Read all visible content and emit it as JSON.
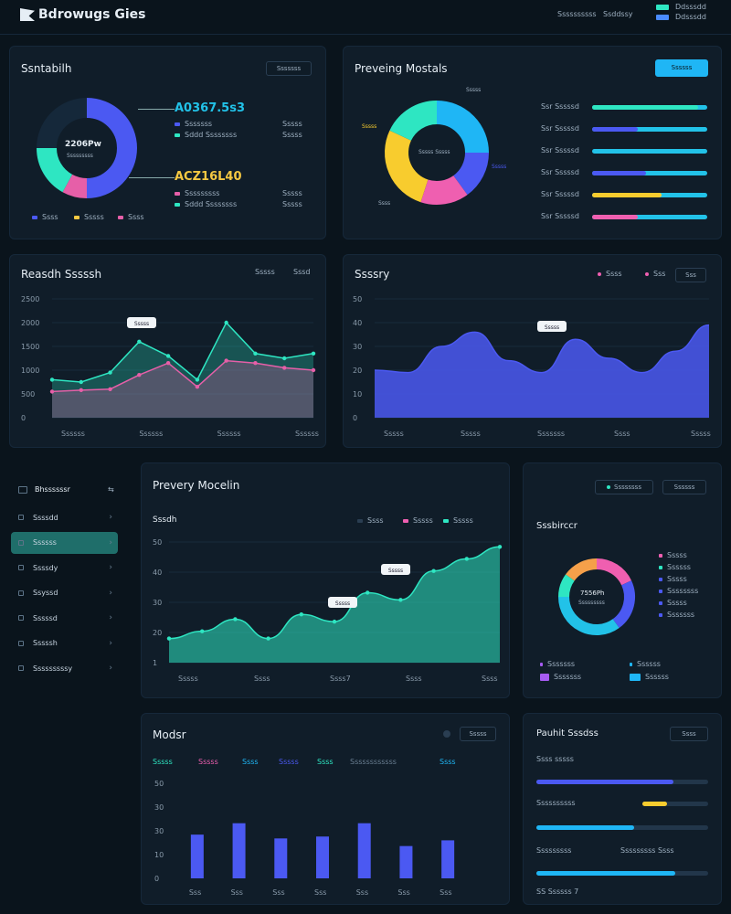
{
  "header": {
    "logo_text": "Bdrowugs Gies",
    "nav": [
      "Ssssssssss",
      "Ssddssy"
    ],
    "legend": [
      {
        "label": "Ddsssdd",
        "color": "#2ee6c2"
      },
      {
        "label": "Ddsssdd",
        "color": "#4a8bff"
      }
    ]
  },
  "donut1": {
    "title": "Ssntabilh",
    "button": "Sssssss",
    "center_value": "2206Pw",
    "center_sub": "Sssssssss",
    "stat1": "A0367.5s3",
    "stat2": "ACZ16L40",
    "stat1_rows": [
      {
        "label": "Sssssss",
        "value": "Sssss",
        "color": "#4b59f2"
      },
      {
        "label": "Sddd Ssssssss",
        "value": "Sssss",
        "color": "#2ee6c2"
      }
    ],
    "stat2_rows": [
      {
        "label": "Sssssssss",
        "value": "Sssss",
        "color": "#e65fa8"
      },
      {
        "label": "Sddd Ssssssss",
        "value": "Sssss",
        "color": "#2ee6c2"
      }
    ],
    "footer": [
      {
        "label": "Ssss",
        "color": "#4b59f2"
      },
      {
        "label": "Sssss",
        "color": "#f5c842"
      },
      {
        "label": "Ssss",
        "color": "#e65fa8"
      }
    ],
    "segments": [
      {
        "value": 50,
        "color": "#4b59f2"
      },
      {
        "value": 8,
        "color": "#e65fa8"
      },
      {
        "value": 17,
        "color": "#2ee6c2"
      },
      {
        "value": 25,
        "color": "#15283a"
      }
    ]
  },
  "donut2": {
    "title": "Preveing Mostals",
    "button": "Ssssss",
    "center_label": "Sssss Sssss",
    "callouts": [
      "Sssss",
      "Sssss",
      "Ssss",
      "Sssss"
    ],
    "segments": [
      {
        "value": 25,
        "color": "#1fb6f5"
      },
      {
        "value": 15,
        "color": "#4b59f2"
      },
      {
        "value": 15,
        "color": "#ef5fb0"
      },
      {
        "value": 27,
        "color": "#f8cc2e"
      },
      {
        "value": 18,
        "color": "#2ee6c2"
      }
    ],
    "bars": [
      {
        "label": "Ssr Sssssd",
        "fill": 0.92,
        "color": "#2ee6c2"
      },
      {
        "label": "Ssr Sssssd",
        "fill": 0.4,
        "color": "#4b59f2"
      },
      {
        "label": "Ssr Sssssd",
        "fill": 0.0,
        "color": "#1fb6f5"
      },
      {
        "label": "Ssr Sssssd",
        "fill": 0.47,
        "color": "#4b59f2"
      },
      {
        "label": "Ssr Sssssd",
        "fill": 0.6,
        "color": "#f8cc2e"
      },
      {
        "label": "Ssr Sssssd",
        "fill": 0.4,
        "color": "#ef5fb0"
      }
    ]
  },
  "chart_data": [
    {
      "type": "area",
      "title": "Reasdh Sssssh",
      "controls": [
        "Sssss",
        "Sssd"
      ],
      "callout": "Sssss",
      "ylim": [
        0,
        2500
      ],
      "yticks": [
        "2500",
        "2000",
        "1500",
        "1000",
        "500",
        "0"
      ],
      "xticks": [
        "Ssssss",
        "Ssssss",
        "Ssssss",
        "Ssssss"
      ],
      "series": [
        {
          "color": "#2ee6c2",
          "values": [
            800,
            750,
            950,
            1600,
            1300,
            800,
            2000,
            1350,
            1250,
            1350
          ]
        },
        {
          "color": "#e65fa8",
          "values": [
            550,
            580,
            600,
            900,
            1150,
            650,
            1200,
            1150,
            1050,
            1000
          ]
        }
      ]
    },
    {
      "type": "area",
      "title": "Ssssry",
      "legend": [
        "Ssss",
        "Sss",
        "Sss"
      ],
      "callout": "Sssss",
      "ylim": [
        0,
        50
      ],
      "yticks": [
        "50",
        "40",
        "30",
        "20",
        "10",
        "0"
      ],
      "xticks": [
        "Sssss",
        "Sssss",
        "Sssssss",
        "Ssss",
        "Sssss"
      ],
      "series": [
        {
          "color": "#4b59f2",
          "values": [
            20,
            19,
            30,
            36,
            24,
            19,
            33,
            25,
            19,
            28,
            39
          ]
        }
      ]
    },
    {
      "type": "area",
      "title": "Sssdh",
      "legend": [
        "Ssss",
        "Sssss",
        "Sssss"
      ],
      "callouts": [
        "Sssss",
        "Sssss"
      ],
      "ylim": [
        0,
        50
      ],
      "yticks": [
        "50",
        "40",
        "30",
        "20",
        "1"
      ],
      "xticks": [
        "Sssss",
        "Ssss",
        "Ssss7",
        "Ssss",
        "Ssss"
      ],
      "series": [
        {
          "color": "#2ee6c2",
          "values": [
            10,
            13,
            18,
            10,
            20,
            17,
            29,
            26,
            38,
            43,
            48
          ]
        }
      ]
    },
    {
      "type": "bar",
      "title": "Modsr",
      "button": "Sssss",
      "legend": [
        "Sssss",
        "Sssss",
        "Ssss",
        "Sssss",
        "Ssss",
        "Ssssssssssss",
        "Ssss"
      ],
      "ylim": [
        0,
        50
      ],
      "yticks": [
        "50",
        "30",
        "30",
        "10",
        "0"
      ],
      "xticks": [
        "Sss",
        "Sss",
        "Sss",
        "Sss",
        "Sss",
        "Sss",
        "Sss"
      ],
      "values": [
        23,
        29,
        21,
        22,
        29,
        17,
        20
      ]
    }
  ],
  "prevery": {
    "title": "Prevery Mocelin"
  },
  "sidebar": {
    "header": "Bhssssssr",
    "items": [
      {
        "label": "Ssssdd",
        "active": false
      },
      {
        "label": "Ssssss",
        "active": true
      },
      {
        "label": "Ssssdy",
        "active": false
      },
      {
        "label": "Ssyssd",
        "active": false
      },
      {
        "label": "Sssssd",
        "active": false
      },
      {
        "label": "Sssssh",
        "active": false
      },
      {
        "label": "Sssssssssy",
        "active": false
      }
    ]
  },
  "summary": {
    "title": "Sssbirccr",
    "buttons": [
      "Ssssssss",
      "Ssssss"
    ],
    "center_value": "7556Ph",
    "center_sub": "Sssssssss",
    "legend": [
      {
        "label": "Sssss",
        "color": "#ef5fb0"
      },
      {
        "label": "Ssssss",
        "color": "#2ee6c2"
      },
      {
        "label": "Sssss",
        "color": "#4b59f2"
      },
      {
        "label": "Ssssssss",
        "color": "#4b59f2"
      },
      {
        "label": "Sssss",
        "color": "#4b59f2"
      },
      {
        "label": "Sssssss",
        "color": "#4b59f2"
      }
    ],
    "footer": [
      {
        "label": "Sssssss",
        "color": "#a65bf2"
      },
      {
        "label": "Ssssss",
        "color": "#1fb6f5"
      },
      {
        "label": "Sssssss",
        "color": "#a65bf2"
      },
      {
        "label": "Ssssss",
        "color": "#1fb6f5"
      }
    ],
    "segments": [
      {
        "value": 18,
        "color": "#ef5fb0"
      },
      {
        "value": 22,
        "color": "#4b59f2"
      },
      {
        "value": 35,
        "color": "#22c2e8"
      },
      {
        "value": 10,
        "color": "#2ee6c2"
      },
      {
        "value": 15,
        "color": "#f5a04a"
      }
    ]
  },
  "pauth": {
    "title": "Pauhit Sssdss",
    "button": "Ssss",
    "rows": [
      {
        "label": "Ssss sssss",
        "fill": 0.8,
        "color": "#4b59f2",
        "value": ""
      },
      {
        "label": "Ssssssssss",
        "fill": 0.38,
        "color": "#f8cc2e",
        "value": ""
      },
      {
        "label": "",
        "fill": 0.57,
        "color": "#1fb6f5",
        "value": ""
      },
      {
        "label": "Sssssssss",
        "fill": 0.0,
        "color": "#4b59f2",
        "value": "Sssssssss Ssss"
      },
      {
        "label": "",
        "fill": 0.81,
        "color": "#1fb6f5",
        "value": ""
      }
    ],
    "footer": "SS Ssssss 7"
  }
}
